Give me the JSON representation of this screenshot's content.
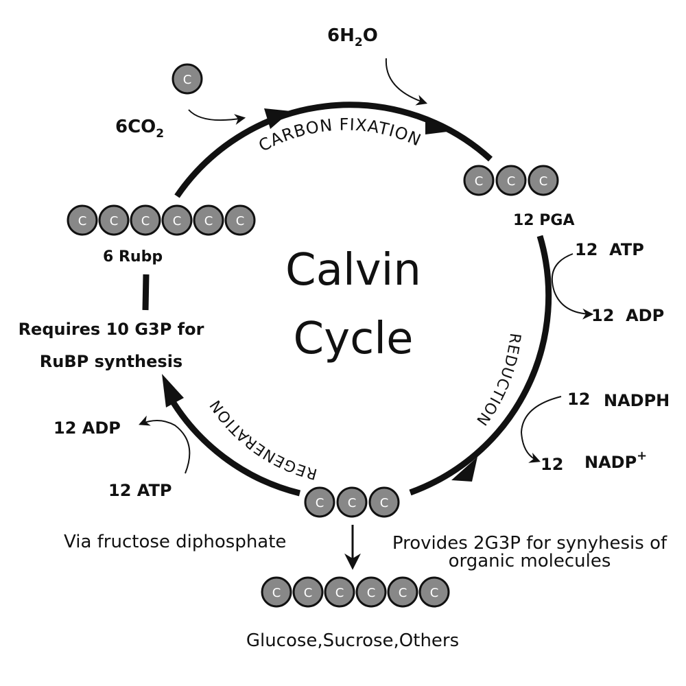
{
  "title": {
    "line1": "Calvin",
    "line2": "Cycle"
  },
  "stages": {
    "fixation": "CARBON FIXATION",
    "reduction": "REDUCTION",
    "regeneration": "REGENERATION"
  },
  "atom_letter": "C",
  "inputs": {
    "co2_base": "6CO",
    "co2_sub": "2",
    "h2o_pre": "6H",
    "h2o_sub": "2",
    "h2o_post": "O"
  },
  "molecules": {
    "pga": "12 PGA",
    "rubp": "6 Rubp",
    "products": "Glucose,Sucrose,Others"
  },
  "cofactors": {
    "atp_in_right": "12  ATP",
    "adp_out_right": "12  ADP",
    "nadph_num": "12",
    "nadph": "NADPH",
    "nadp_num": "12",
    "nadp": "NADP",
    "nadp_sup": "+",
    "adp_out_left": "12 ADP",
    "atp_in_left": "12 ATP"
  },
  "notes": {
    "rubp_line1": "Requires 10 G3P for",
    "rubp_line2": "RuBP synthesis",
    "fructose": "Via fructose diphosphate",
    "g3p_line1": "Provides 2G3P for synyhesis of",
    "g3p_line2": "organic molecules"
  }
}
